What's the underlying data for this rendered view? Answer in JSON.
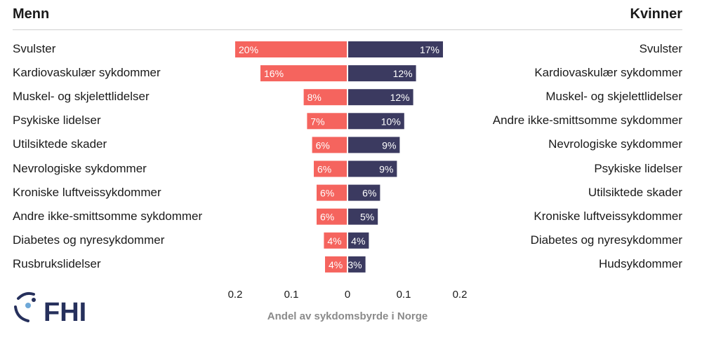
{
  "header": {
    "left": "Menn",
    "right": "Kvinner"
  },
  "colors": {
    "men": "#f5645e",
    "women": "#3b3a60",
    "logo": "#26305c",
    "logo_accent": "#6ea8d8"
  },
  "logo": {
    "text": "FHI"
  },
  "chart_data": {
    "type": "bar",
    "orientation": "horizontal-diverging",
    "xlabel": "Andel av sykdomsbyrde i Norge",
    "xlim": [
      -0.2,
      0.2
    ],
    "xticks": [
      -0.2,
      -0.1,
      0,
      0.1,
      0.2
    ],
    "xtick_labels": [
      "0.2",
      "0.1",
      "0",
      "0.1",
      "0.2"
    ],
    "series": [
      {
        "name": "Menn",
        "side": "left",
        "categories": [
          "Svulster",
          "Kardiovaskulær sykdommer",
          "Muskel- og skjelettlidelser",
          "Psykiske lidelser",
          "Utilsiktede skader",
          "Nevrologiske sykdommer",
          "Kroniske luftveissykdommer",
          "Andre ikke-smittsomme sykdommer",
          "Diabetes og nyresykdommer",
          "Rusbrukslidelser"
        ],
        "values": [
          0.2,
          0.155,
          0.078,
          0.072,
          0.063,
          0.06,
          0.055,
          0.055,
          0.042,
          0.04
        ],
        "labels": [
          "20%",
          "16%",
          "8%",
          "7%",
          "6%",
          "6%",
          "6%",
          "6%",
          "4%",
          "4%"
        ]
      },
      {
        "name": "Kvinner",
        "side": "right",
        "categories": [
          "Svulster",
          "Kardiovaskulær sykdommer",
          "Muskel- og skjelettlidelser",
          "Andre ikke-smittsomme sykdommer",
          "Nevrologiske sykdommer",
          "Psykiske lidelser",
          "Utilsiktede skader",
          "Kroniske luftveissykdommer",
          "Diabetes og nyresykdommer",
          "Hudsykdommer"
        ],
        "values": [
          0.17,
          0.122,
          0.117,
          0.101,
          0.093,
          0.088,
          0.058,
          0.054,
          0.038,
          0.032
        ],
        "labels": [
          "17%",
          "12%",
          "12%",
          "10%",
          "9%",
          "9%",
          "6%",
          "5%",
          "4%",
          "3%"
        ]
      }
    ]
  }
}
